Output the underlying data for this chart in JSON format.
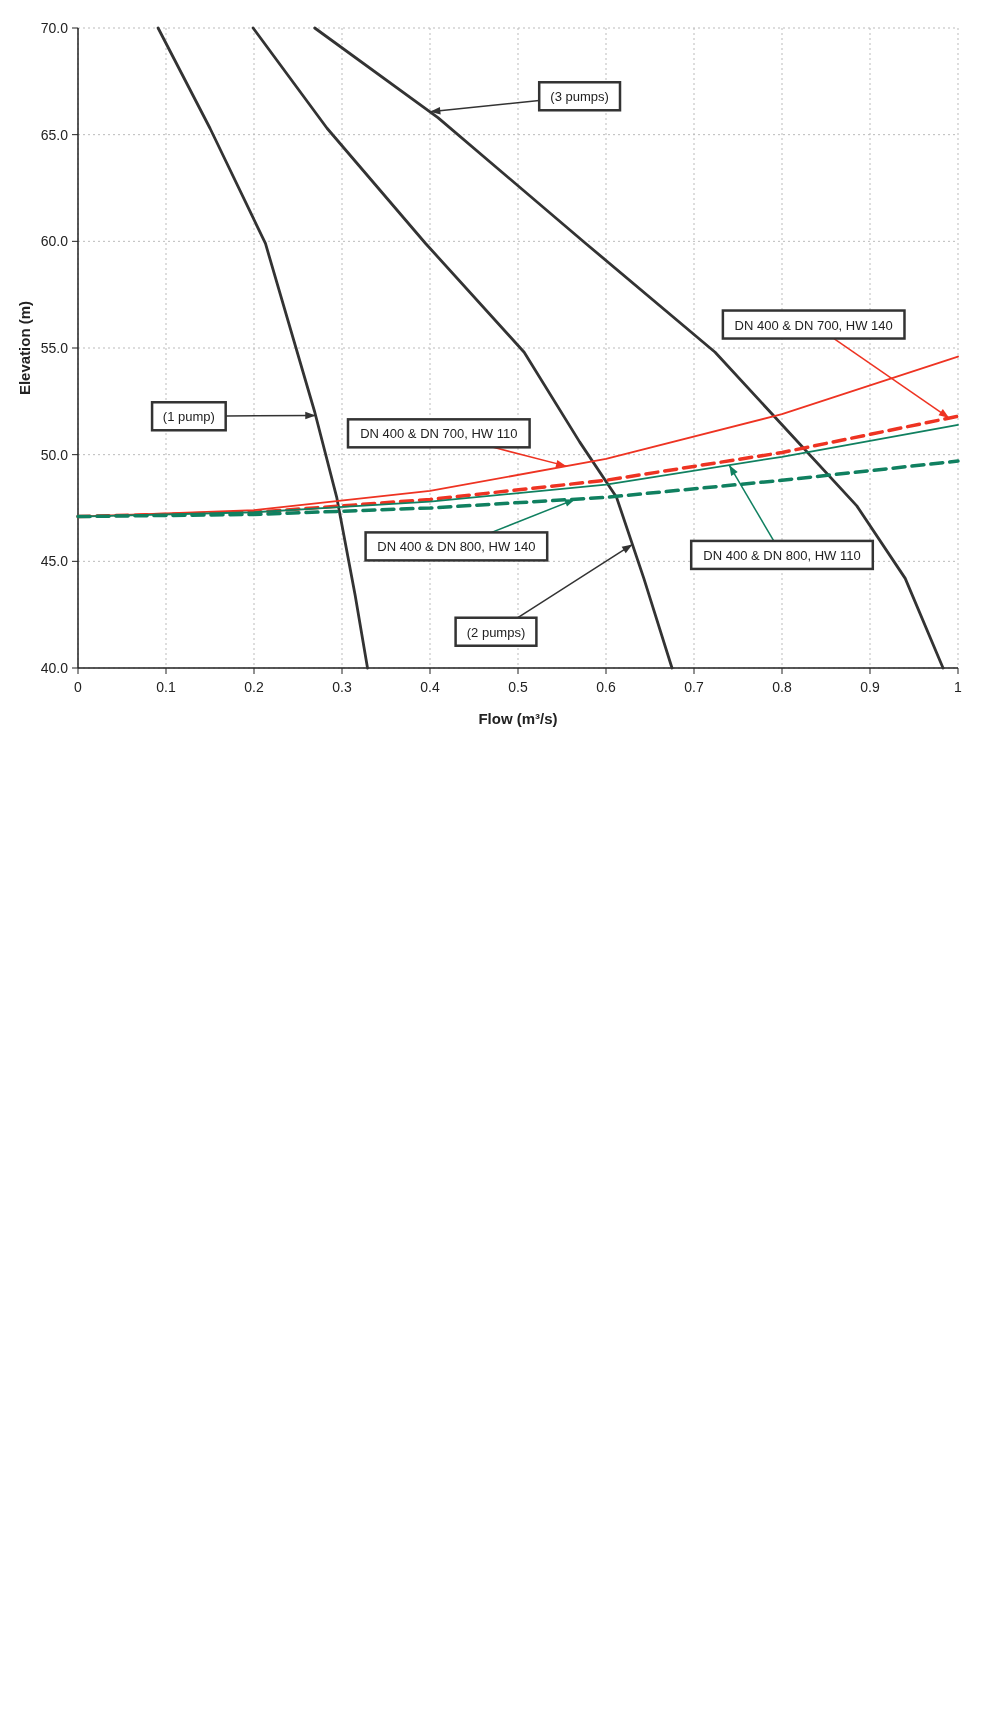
{
  "chart_data": {
    "type": "line",
    "xlabel": "Flow (m³/s)",
    "ylabel": "Elevation (m)",
    "xlim": [
      0,
      1
    ],
    "ylim": [
      40,
      70
    ],
    "xticks": [
      0,
      0.1,
      0.2,
      0.3,
      0.4,
      0.5,
      0.6,
      0.7,
      0.8,
      0.9,
      1
    ],
    "yticks": [
      {
        "value": 40,
        "label": "40.0"
      },
      {
        "value": 45,
        "label": "45.0"
      },
      {
        "value": 50,
        "label": "50.0"
      },
      {
        "value": 55,
        "label": "55.0"
      },
      {
        "value": 60,
        "label": "60.0"
      },
      {
        "value": 65,
        "label": "65.0"
      },
      {
        "value": 70,
        "label": "70.0"
      }
    ],
    "grid": true,
    "legend": false,
    "marker": "none",
    "series": [
      {
        "name": "(3 pumps)",
        "color": "#333333",
        "line_style": "solid",
        "x": [
          0.269,
          0.409,
          0.577,
          0.724,
          0.8,
          0.885,
          0.94,
          0.983
        ],
        "values": [
          70,
          65.8,
          59.9,
          54.8,
          51.4,
          47.6,
          44.2,
          40
        ]
      },
      {
        "name": "(2 pumps)",
        "color": "#333333",
        "line_style": "solid",
        "x": [
          0.199,
          0.283,
          0.395,
          0.507,
          0.57,
          0.612,
          0.643,
          0.675
        ],
        "values": [
          70,
          65.3,
          59.9,
          54.8,
          50.6,
          48,
          44.2,
          40
        ]
      },
      {
        "name": "(1 pump)",
        "color": "#333333",
        "line_style": "solid",
        "x": [
          0.091,
          0.15,
          0.213,
          0.269,
          0.294,
          0.315,
          0.329
        ],
        "values": [
          70,
          65.3,
          59.9,
          52,
          48,
          43.4,
          40
        ]
      },
      {
        "name": "DN 400 & DN 700, HW 110",
        "color": "#ee3322",
        "line_style": "solid",
        "x": [
          0,
          0.2,
          0.4,
          0.6,
          0.8,
          1
        ],
        "values": [
          47.1,
          47.4,
          48.3,
          49.8,
          51.9,
          54.6
        ]
      },
      {
        "name": "DN 400 & DN 700, HW 140",
        "color": "#ee3322",
        "line_style": "dashed",
        "x": [
          0,
          0.2,
          0.4,
          0.6,
          0.8,
          1
        ],
        "values": [
          47.1,
          47.3,
          47.9,
          48.8,
          50.1,
          51.8
        ]
      },
      {
        "name": "DN 400 & DN 800, HW 110",
        "color": "#108060",
        "line_style": "solid",
        "x": [
          0,
          0.2,
          0.4,
          0.6,
          0.8,
          1
        ],
        "values": [
          47.1,
          47.3,
          47.8,
          48.6,
          49.9,
          51.4
        ]
      },
      {
        "name": "DN 400 & DN 800, HW 140",
        "color": "#108060",
        "line_style": "dashed",
        "x": [
          0,
          0.2,
          0.4,
          0.6,
          0.8,
          1
        ],
        "values": [
          47.1,
          47.2,
          47.5,
          48.0,
          48.8,
          49.7
        ]
      }
    ]
  }
}
